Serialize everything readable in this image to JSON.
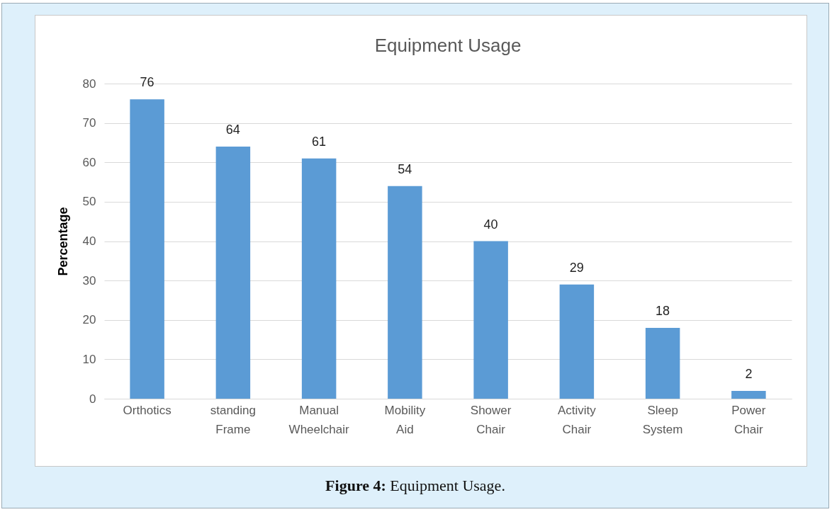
{
  "chart_data": {
    "type": "bar",
    "title": "Equipment Usage",
    "ylabel": "Percentage",
    "categories": [
      "Orthotics",
      "standing Frame",
      "Manual Wheelchair",
      "Mobility Aid",
      "Shower Chair",
      "Activity Chair",
      "Sleep System",
      "Power Chair"
    ],
    "values": [
      76,
      64,
      61,
      54,
      40,
      29,
      18,
      2
    ],
    "color": "#5b9bd5",
    "ylim": [
      0,
      80
    ],
    "yticks": [
      0,
      10,
      20,
      30,
      40,
      50,
      60,
      70,
      80
    ],
    "grid": "y",
    "data_labels": true,
    "annotations": [
      "Figure 4: Equipment Usage."
    ]
  }
}
